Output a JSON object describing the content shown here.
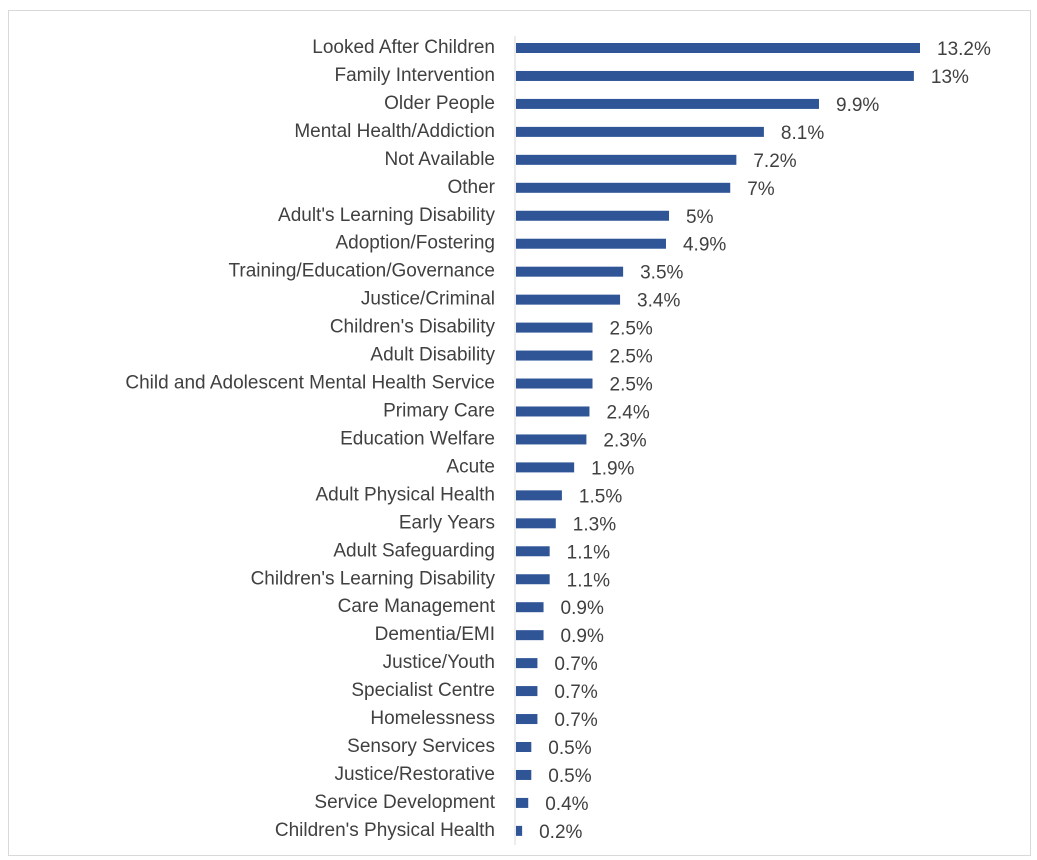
{
  "chart_data": {
    "type": "bar",
    "orientation": "horizontal",
    "color": "#2f5597",
    "categories": [
      "Looked After Children",
      "Family Intervention",
      "Older People",
      "Mental Health/Addiction",
      "Not Available",
      "Other",
      "Adult's Learning Disability",
      "Adoption/Fostering",
      "Training/Education/Governance",
      "Justice/Criminal",
      "Children's Disability",
      "Adult Disability",
      "Child and Adolescent Mental Health Service",
      "Primary Care",
      "Education Welfare",
      "Acute",
      "Adult Physical Health",
      "Early Years",
      "Adult Safeguarding",
      "Children's Learning Disability",
      "Care Management",
      "Dementia/EMI",
      "Justice/Youth",
      "Specialist Centre",
      "Homelessness",
      "Sensory Services",
      "Justice/Restorative",
      "Service Development",
      "Children's Physical Health"
    ],
    "values": [
      13.2,
      13,
      9.9,
      8.1,
      7.2,
      7,
      5,
      4.9,
      3.5,
      3.4,
      2.5,
      2.5,
      2.5,
      2.4,
      2.3,
      1.9,
      1.5,
      1.3,
      1.1,
      1.1,
      0.9,
      0.9,
      0.7,
      0.7,
      0.7,
      0.5,
      0.5,
      0.4,
      0.2
    ],
    "value_labels": [
      "13.2%",
      "13%",
      "9.9%",
      "8.1%",
      "7.2%",
      "7%",
      "5%",
      "4.9%",
      "3.5%",
      "3.4%",
      "2.5%",
      "2.5%",
      "2.5%",
      "2.4%",
      "2.3%",
      "1.9%",
      "1.5%",
      "1.3%",
      "1.1%",
      "1.1%",
      "0.9%",
      "0.9%",
      "0.7%",
      "0.7%",
      "0.7%",
      "0.5%",
      "0.5%",
      "0.4%",
      "0.2%"
    ]
  }
}
